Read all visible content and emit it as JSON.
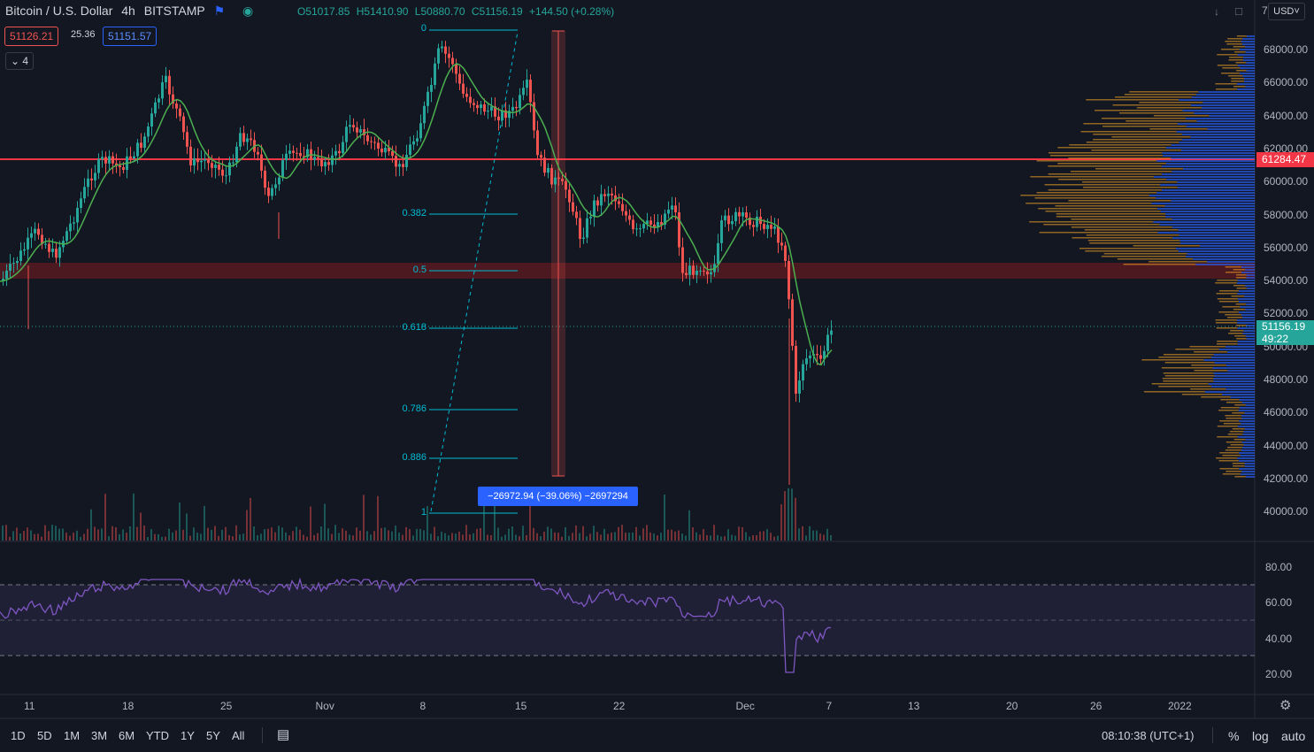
{
  "header": {
    "symbol": "Bitcoin / U.S. Dollar",
    "interval": "4h",
    "exchange": "BITSTAMP",
    "open": "O51017.85",
    "high": "H51410.90",
    "low": "L50880.70",
    "close": "C51156.19",
    "change": "+144.50 (+0.28%)"
  },
  "bid_ask": {
    "sell": "51126.21",
    "spread": "25.36",
    "buy": "51151.57"
  },
  "indicators_toggle": "4",
  "currency_button": "USD",
  "price_axis": [
    "68000.00",
    "66000.00",
    "64000.00",
    "62000.00",
    "60000.00",
    "58000.00",
    "56000.00",
    "54000.00",
    "52000.00",
    "50000.00",
    "48000.00",
    "46000.00",
    "44000.00",
    "42000.00",
    "40000.00"
  ],
  "price_axis_top": "7",
  "rsi_axis": [
    "80.00",
    "60.00",
    "40.00",
    "20.00"
  ],
  "time_axis": [
    "11",
    "18",
    "25",
    "Nov",
    "8",
    "15",
    "22",
    "Dec",
    "7",
    "13",
    "20",
    "26",
    "2022"
  ],
  "horizontal_line_label": "61284.47",
  "last_price_label": "51156.19",
  "countdown_label": "49:22",
  "fib_levels": [
    "0",
    "0.382",
    "0.5",
    "0.618",
    "0.786",
    "0.886",
    "1"
  ],
  "measure_label": "−26972.94 (−39.06%) −2697294",
  "timeframes": [
    "1D",
    "5D",
    "1M",
    "3M",
    "6M",
    "YTD",
    "1Y",
    "5Y",
    "All"
  ],
  "clock": "08:10:38 (UTC+1)",
  "bottom_right": {
    "percent": "%",
    "log": "log",
    "auto": "auto"
  },
  "colors": {
    "up": "#26a69a",
    "down": "#ef5350",
    "ma": "#4caf50",
    "rsi": "#7e57c2",
    "hline": "#f23645",
    "fib": "#00bcd4",
    "measure": "#2962ff"
  }
}
